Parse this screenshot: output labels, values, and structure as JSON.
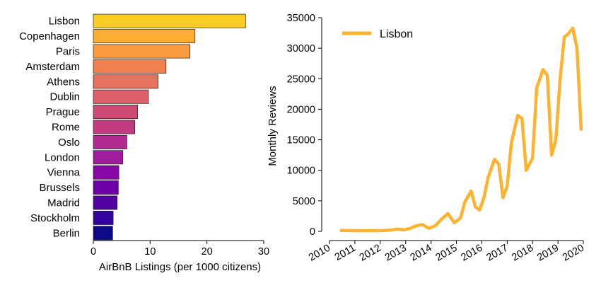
{
  "chart_data": [
    {
      "type": "bar",
      "orientation": "horizontal",
      "categories": [
        "Lisbon",
        "Copenhagen",
        "Paris",
        "Amsterdam",
        "Athens",
        "Dublin",
        "Prague",
        "Rome",
        "Oslo",
        "London",
        "Vienna",
        "Brussels",
        "Madrid",
        "Stockholm",
        "Berlin"
      ],
      "values": [
        26.8,
        17.9,
        17.0,
        12.8,
        11.4,
        9.7,
        7.8,
        7.3,
        5.9,
        5.2,
        4.5,
        4.4,
        4.2,
        3.5,
        3.4
      ],
      "colors": [
        "#fccc25",
        "#fdad32",
        "#fb9a3e",
        "#f0804e",
        "#e7725d",
        "#db6067",
        "#ce4a74",
        "#c13b80",
        "#b12a90",
        "#a01d9c",
        "#8707a6",
        "#6d01a8",
        "#5202a3",
        "#33049d",
        "#0d0887"
      ],
      "xlabel": "AirBnB Listings (per 1000 citizens)",
      "xlim": [
        0,
        30
      ],
      "xticks": [
        "0",
        "10",
        "20",
        "30"
      ],
      "grid": false
    },
    {
      "type": "line",
      "series": [
        {
          "name": "Lisbon",
          "color": "#fdb32f",
          "points": [
            [
              "2010-06-01",
              150
            ],
            [
              "2010-09-01",
              130
            ],
            [
              "2010-12-01",
              120
            ],
            [
              "2011-03-01",
              110
            ],
            [
              "2011-06-01",
              100
            ],
            [
              "2011-09-01",
              120
            ],
            [
              "2011-12-01",
              110
            ],
            [
              "2012-03-01",
              150
            ],
            [
              "2012-06-01",
              200
            ],
            [
              "2012-09-01",
              380
            ],
            [
              "2012-12-01",
              250
            ],
            [
              "2013-03-01",
              450
            ],
            [
              "2013-06-01",
              900
            ],
            [
              "2013-09-01",
              1100
            ],
            [
              "2013-12-01",
              500
            ],
            [
              "2014-03-01",
              900
            ],
            [
              "2014-06-01",
              2000
            ],
            [
              "2014-09-01",
              2900
            ],
            [
              "2014-12-01",
              1400
            ],
            [
              "2015-03-01",
              2200
            ],
            [
              "2015-05-01",
              4800
            ],
            [
              "2015-08-01",
              6600
            ],
            [
              "2015-10-01",
              4000
            ],
            [
              "2015-12-01",
              3500
            ],
            [
              "2016-02-01",
              5500
            ],
            [
              "2016-04-01",
              8800
            ],
            [
              "2016-07-01",
              11800
            ],
            [
              "2016-09-01",
              11000
            ],
            [
              "2016-11-01",
              5500
            ],
            [
              "2017-01-01",
              7500
            ],
            [
              "2017-03-01",
              14500
            ],
            [
              "2017-06-01",
              19000
            ],
            [
              "2017-08-01",
              18500
            ],
            [
              "2017-10-01",
              10000
            ],
            [
              "2018-01-01",
              12000
            ],
            [
              "2018-03-01",
              23500
            ],
            [
              "2018-06-01",
              26500
            ],
            [
              "2018-08-01",
              25500
            ],
            [
              "2018-10-01",
              12500
            ],
            [
              "2018-12-01",
              15000
            ],
            [
              "2019-02-01",
              25000
            ],
            [
              "2019-04-01",
              31800
            ],
            [
              "2019-06-01",
              32400
            ],
            [
              "2019-08-01",
              33300
            ],
            [
              "2019-10-01",
              30000
            ],
            [
              "2019-12-01",
              16500
            ]
          ]
        }
      ],
      "ylabel": "Monthly Reviews",
      "ylim": [
        0,
        35000
      ],
      "yticks": [
        "0",
        "5000",
        "10000",
        "15000",
        "20000",
        "25000",
        "30000",
        "35000"
      ],
      "xticks": [
        "2010",
        "2011",
        "2012",
        "2013",
        "2014",
        "2015",
        "2016",
        "2017",
        "2018",
        "2019",
        "2020"
      ],
      "xlim": [
        "2010-01-01",
        "2020-01-01"
      ],
      "legend": "top-left",
      "grid": false
    }
  ]
}
